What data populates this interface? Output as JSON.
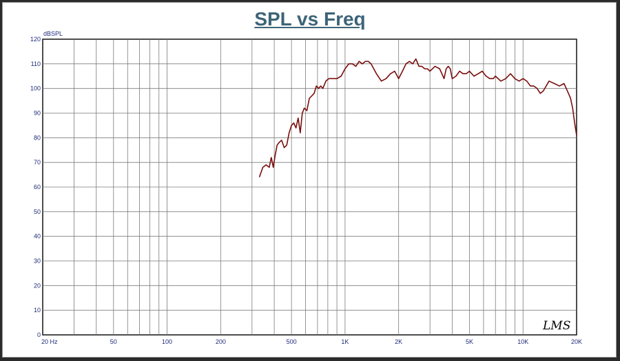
{
  "chart_data": {
    "type": "line",
    "title": "SPL vs Freq",
    "ylabel": "dBSPL",
    "xlabel": "",
    "x_scale": "log",
    "xlim": [
      20,
      20000
    ],
    "ylim": [
      0,
      120
    ],
    "y_ticks": [
      0,
      10,
      20,
      30,
      40,
      50,
      60,
      70,
      80,
      90,
      100,
      110,
      120
    ],
    "x_tick_labels": [
      {
        "value": 20,
        "label": "20  Hz"
      },
      {
        "value": 50,
        "label": "50"
      },
      {
        "value": 100,
        "label": "100"
      },
      {
        "value": 200,
        "label": "200"
      },
      {
        "value": 500,
        "label": "500"
      },
      {
        "value": 1000,
        "label": "1K"
      },
      {
        "value": 2000,
        "label": "2K"
      },
      {
        "value": 5000,
        "label": "5K"
      },
      {
        "value": 10000,
        "label": "10K"
      },
      {
        "value": 20000,
        "label": "20K"
      }
    ],
    "grid": true,
    "logo": "LMS",
    "series": [
      {
        "color": "#7a0c0c",
        "x": [
          330,
          345,
          360,
          375,
          385,
          395,
          405,
          415,
          425,
          440,
          455,
          470,
          485,
          500,
          515,
          530,
          545,
          560,
          575,
          590,
          610,
          630,
          650,
          670,
          690,
          710,
          730,
          750,
          780,
          810,
          840,
          870,
          900,
          950,
          1000,
          1050,
          1100,
          1150,
          1200,
          1250,
          1300,
          1350,
          1400,
          1450,
          1500,
          1600,
          1700,
          1800,
          1900,
          2000,
          2100,
          2200,
          2300,
          2400,
          2500,
          2600,
          2700,
          2800,
          2900,
          3000,
          3200,
          3400,
          3600,
          3700,
          3800,
          3900,
          4000,
          4200,
          4400,
          4600,
          4800,
          5000,
          5300,
          5600,
          5900,
          6200,
          6500,
          6800,
          7000,
          7500,
          8000,
          8500,
          9000,
          9500,
          10000,
          10500,
          11000,
          11500,
          12000,
          12500,
          13000,
          14000,
          15000,
          16000,
          17000,
          18000,
          18500,
          19000,
          19500,
          20000
        ],
        "y": [
          64,
          68,
          69,
          68,
          72,
          68,
          73,
          77,
          78,
          79,
          76,
          77,
          82,
          85,
          86,
          84,
          88,
          82,
          90,
          92,
          91,
          96,
          97,
          98,
          101,
          100,
          101,
          100,
          103,
          104,
          104,
          104,
          104,
          105,
          108,
          110,
          110,
          109,
          111,
          110,
          111,
          111,
          110,
          108,
          106,
          103,
          104,
          106,
          107,
          104,
          107,
          110,
          111,
          110,
          112,
          109,
          109,
          108,
          108,
          107,
          109,
          108,
          104,
          108,
          109,
          108,
          104,
          105,
          107,
          106,
          106,
          107,
          105,
          106,
          107,
          105,
          104,
          104,
          105,
          103,
          104,
          106,
          104,
          103,
          104,
          103,
          101,
          101,
          100,
          98,
          99,
          103,
          102,
          101,
          102,
          98,
          96,
          92,
          86,
          81
        ]
      }
    ]
  }
}
